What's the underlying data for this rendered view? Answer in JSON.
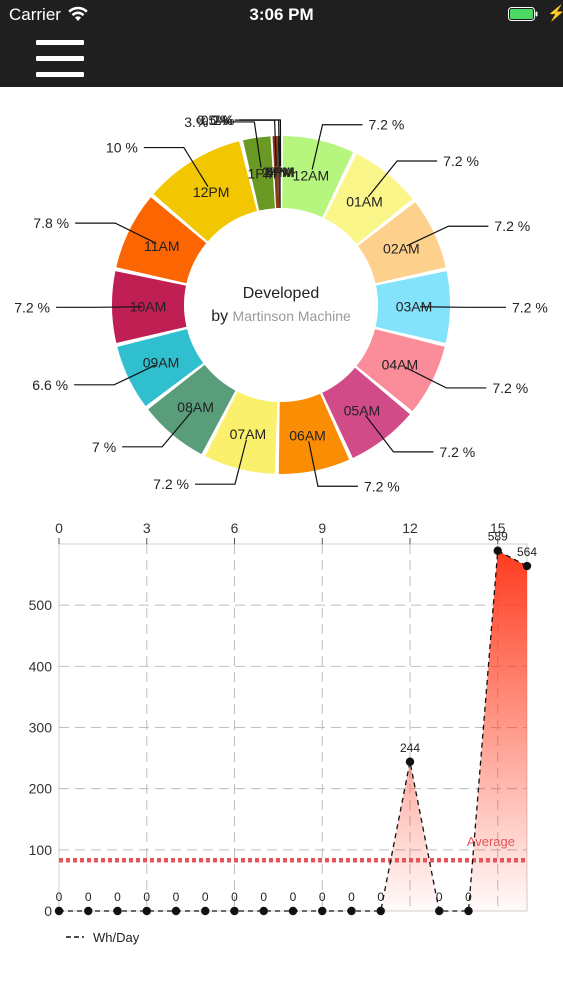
{
  "status_bar": {
    "carrier": "Carrier",
    "time": "3:06 PM",
    "wifi_icon": "wifi-icon",
    "battery_icon": "battery-full-icon",
    "charging_icon": "charging-bolt-icon",
    "battery_color": "#4cd964"
  },
  "nav_bar": {
    "menu_icon": "hamburger-menu-icon",
    "background": "#1f1f1f"
  },
  "chart_data": [
    {
      "type": "pie",
      "variant": "donut",
      "center_text": {
        "line1": "Developed",
        "line2_prefix": "by ",
        "line2_name": "Martinson Machine"
      },
      "slices": [
        {
          "label": "12AM",
          "percent_label": "7.2 %",
          "value": 7.2,
          "color": "#b6f57e"
        },
        {
          "label": "01AM",
          "percent_label": "7.2 %",
          "value": 7.2,
          "color": "#fbf68a"
        },
        {
          "label": "02AM",
          "percent_label": "7.2 %",
          "value": 7.2,
          "color": "#fdd08b"
        },
        {
          "label": "03AM",
          "percent_label": "7.2 %",
          "value": 7.2,
          "color": "#83e3fb"
        },
        {
          "label": "04AM",
          "percent_label": "7.2 %",
          "value": 7.2,
          "color": "#fb8c9a"
        },
        {
          "label": "05AM",
          "percent_label": "7.2 %",
          "value": 7.2,
          "color": "#d24b89"
        },
        {
          "label": "06AM",
          "percent_label": "7.2 %",
          "value": 7.2,
          "color": "#fb8d04"
        },
        {
          "label": "07AM",
          "percent_label": "7.2 %",
          "value": 7.2,
          "color": "#fbf06b"
        },
        {
          "label": "08AM",
          "percent_label": "7 %",
          "value": 7.0,
          "color": "#5a9d7a"
        },
        {
          "label": "09AM",
          "percent_label": "6.6 %",
          "value": 6.6,
          "color": "#2fbfcf"
        },
        {
          "label": "10AM",
          "percent_label": "7.2 %",
          "value": 7.2,
          "color": "#c01f54"
        },
        {
          "label": "11AM",
          "percent_label": "7.8 %",
          "value": 7.8,
          "color": "#fb6603"
        },
        {
          "label": "12PM",
          "percent_label": "10 %",
          "value": 10.0,
          "color": "#f2c600"
        },
        {
          "label": "1PM",
          "percent_label": "3.%",
          "value": 3.0,
          "color": "#6a9a23"
        },
        {
          "label": "2PM",
          "percent_label": "0.5%",
          "value": 0.5,
          "color": "#8b3a1a"
        },
        {
          "label": "3PM",
          "percent_label": "0.2%",
          "value": 0.2,
          "color": "#333333"
        },
        {
          "label": "4PM",
          "percent_label": "0.%",
          "value": 0.1,
          "color": "#555555"
        }
      ]
    },
    {
      "type": "area",
      "series": [
        {
          "name": "Wh/Day",
          "x": [
            0,
            1,
            2,
            3,
            4,
            5,
            6,
            7,
            8,
            9,
            10,
            11,
            12,
            13,
            14,
            15,
            16
          ],
          "values": [
            0,
            0,
            0,
            0,
            0,
            0,
            0,
            0,
            0,
            0,
            0,
            0,
            244,
            0,
            0,
            589,
            564
          ],
          "labels": [
            "0",
            "0",
            "0",
            "0",
            "0",
            "0",
            "0",
            "0",
            "0",
            "0",
            "0",
            "0",
            "244",
            "0",
            "0",
            "589",
            "564"
          ]
        }
      ],
      "x_ticks": [
        "0",
        "3",
        "6",
        "9",
        "12",
        "15"
      ],
      "y_ticks": [
        "0",
        "100",
        "200",
        "300",
        "400",
        "500"
      ],
      "xlim": [
        0,
        16
      ],
      "ylim": [
        0,
        600
      ],
      "average": {
        "label": "Average",
        "value": 83,
        "color": "#e8545a"
      },
      "fill_color": "#ff3b1e",
      "grid": true,
      "legend_position": "bottom-left"
    }
  ]
}
